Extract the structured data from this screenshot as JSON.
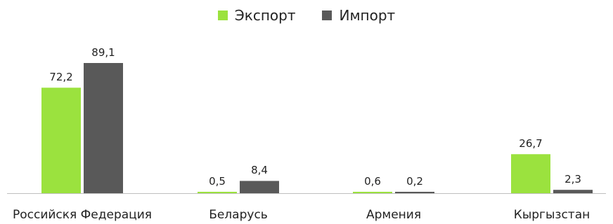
{
  "chart_data": {
    "type": "bar",
    "categories": [
      "Российскя Федерация",
      "Беларусь",
      "Армения",
      "Кыргызстан"
    ],
    "series": [
      {
        "name": "Экспорт",
        "color": "#9be23e",
        "values": [
          72.2,
          0.5,
          0.6,
          26.7
        ],
        "labels": [
          "72,2",
          "0,5",
          "0,6",
          "26,7"
        ]
      },
      {
        "name": "Импорт",
        "color": "#595959",
        "values": [
          89.1,
          8.4,
          0.2,
          2.3
        ],
        "labels": [
          "89,1",
          "8,4",
          "0,2",
          "2,3"
        ]
      }
    ],
    "ylim": [
      0,
      89.1
    ],
    "grid": false,
    "legend_position": "top-center"
  }
}
